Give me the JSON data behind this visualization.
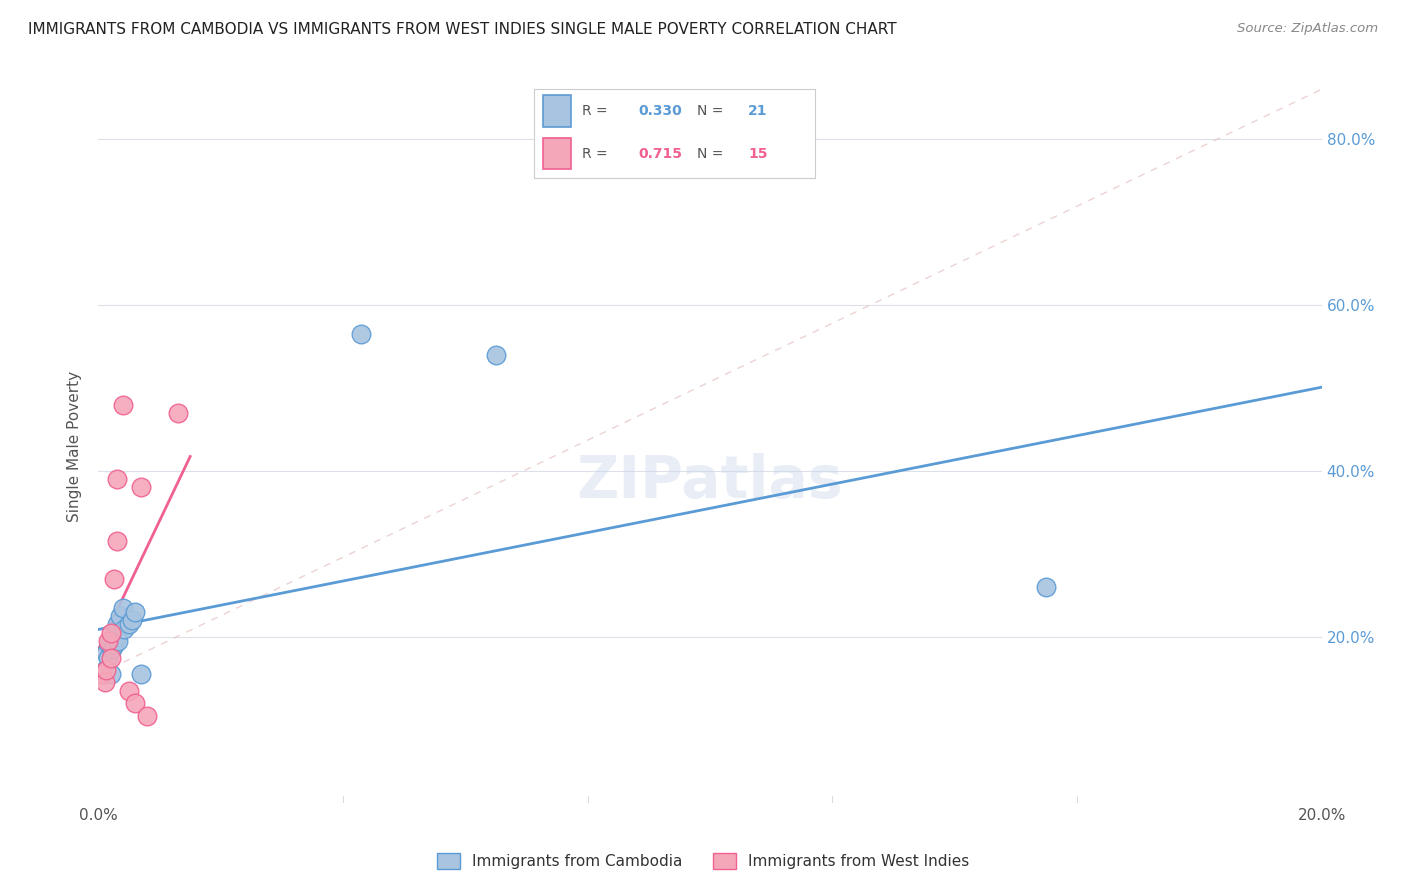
{
  "title": "IMMIGRANTS FROM CAMBODIA VS IMMIGRANTS FROM WEST INDIES SINGLE MALE POVERTY CORRELATION CHART",
  "source": "Source: ZipAtlas.com",
  "ylabel": "Single Male Poverty",
  "legend_label1": "Immigrants from Cambodia",
  "legend_label2": "Immigrants from West Indies",
  "R1": "0.330",
  "N1": "21",
  "R2": "0.715",
  "N2": "15",
  "color_cambodia": "#a8c4e0",
  "color_west_indies": "#f4a7b9",
  "color_line_cambodia": "#5b9bd5",
  "color_line_west_indies": "#f06090",
  "background": "#ffffff",
  "cambodia_x": [
    0.0008,
    0.001,
    0.0012,
    0.0015,
    0.0018,
    0.002,
    0.0022,
    0.0025,
    0.003,
    0.003,
    0.0032,
    0.0035,
    0.004,
    0.0042,
    0.005,
    0.0055,
    0.006,
    0.007,
    0.043,
    0.065,
    0.155
  ],
  "cambodia_y": [
    0.155,
    0.16,
    0.18,
    0.175,
    0.19,
    0.155,
    0.185,
    0.19,
    0.2,
    0.215,
    0.195,
    0.225,
    0.235,
    0.21,
    0.215,
    0.22,
    0.23,
    0.155,
    0.565,
    0.54,
    0.26
  ],
  "west_indies_x": [
    0.0005,
    0.001,
    0.0012,
    0.0015,
    0.002,
    0.002,
    0.0025,
    0.003,
    0.003,
    0.004,
    0.005,
    0.006,
    0.007,
    0.008,
    0.013
  ],
  "west_indies_y": [
    0.155,
    0.145,
    0.16,
    0.195,
    0.175,
    0.205,
    0.27,
    0.315,
    0.39,
    0.48,
    0.135,
    0.12,
    0.38,
    0.105,
    0.47
  ],
  "xlim": [
    0.0,
    0.2
  ],
  "ylim": [
    0.0,
    0.86
  ],
  "yticks": [
    0.0,
    0.2,
    0.4,
    0.6,
    0.8
  ],
  "ytick_labels_right": [
    "20.0%",
    "40.0%",
    "60.0%",
    "80.0%"
  ],
  "xticks": [
    0.0,
    0.04,
    0.08,
    0.12,
    0.16,
    0.2
  ],
  "diag_line_x": [
    0.0,
    0.2
  ],
  "diag_line_y": [
    0.155,
    0.86
  ]
}
